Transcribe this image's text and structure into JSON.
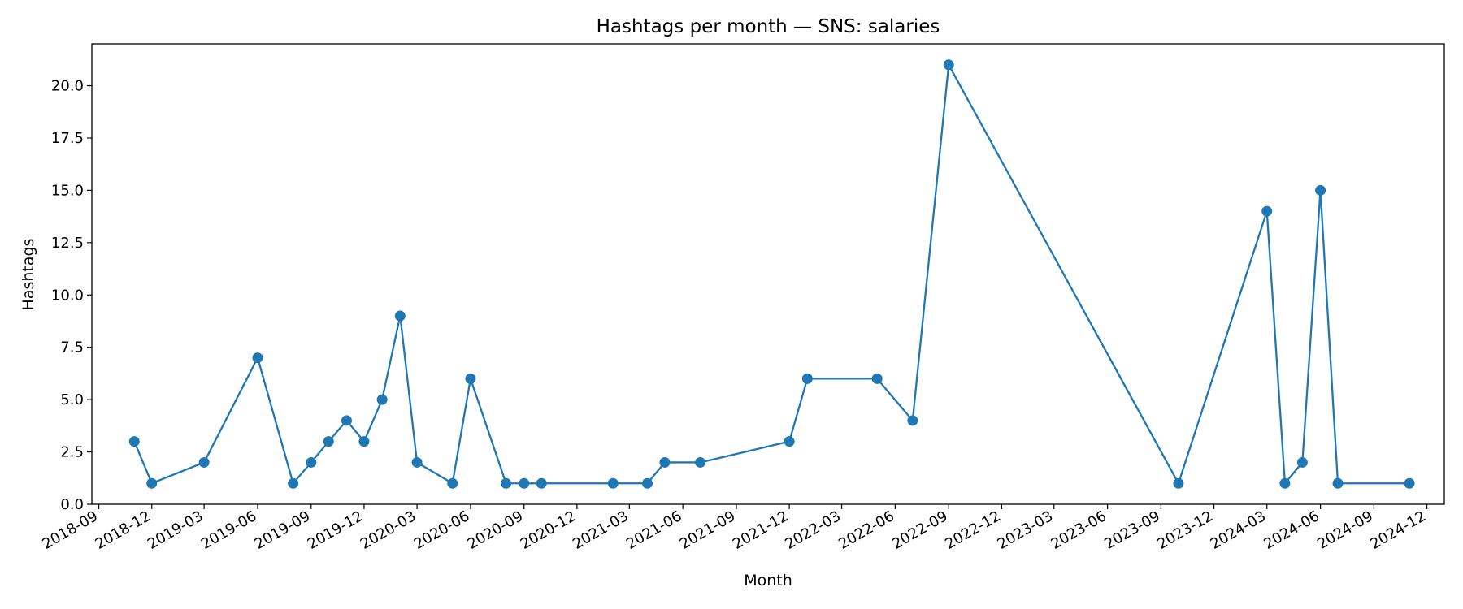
{
  "chart_data": {
    "type": "line",
    "title": "Hashtags per month — SNS: salaries",
    "xlabel": "Month",
    "ylabel": "Hashtags",
    "x_axis": "date",
    "xlim": [
      "2018-08-20",
      "2024-12-31"
    ],
    "ylim": [
      0,
      22
    ],
    "grid": false,
    "y_ticks": [
      "0.0",
      "2.5",
      "5.0",
      "7.5",
      "10.0",
      "12.5",
      "15.0",
      "17.5",
      "20.0"
    ],
    "x_ticks": [
      "2018-09",
      "2018-12",
      "2019-03",
      "2019-06",
      "2019-09",
      "2019-12",
      "2020-03",
      "2020-06",
      "2020-09",
      "2020-12",
      "2021-03",
      "2021-06",
      "2021-09",
      "2021-12",
      "2022-03",
      "2022-06",
      "2022-09",
      "2022-12",
      "2023-03",
      "2023-06",
      "2023-09",
      "2023-12",
      "2024-03",
      "2024-06",
      "2024-09",
      "2024-12"
    ],
    "series": [
      {
        "color": "#1f77b4",
        "x": [
          "2018-11",
          "2018-12",
          "2019-03",
          "2019-06",
          "2019-08",
          "2019-09",
          "2019-10",
          "2019-11",
          "2019-12",
          "2020-01",
          "2020-02",
          "2020-03",
          "2020-05",
          "2020-06",
          "2020-08",
          "2020-09",
          "2020-10",
          "2021-02",
          "2021-04",
          "2021-05",
          "2021-07",
          "2021-12",
          "2022-01",
          "2022-05",
          "2022-07",
          "2022-09",
          "2023-10",
          "2024-03",
          "2024-04",
          "2024-05",
          "2024-06",
          "2024-07",
          "2024-11"
        ],
        "values": [
          3,
          1,
          2,
          7,
          1,
          2,
          3,
          4,
          3,
          5,
          9,
          2,
          1,
          6,
          1,
          1,
          1,
          1,
          1,
          2,
          2,
          3,
          6,
          6,
          4,
          21,
          1,
          14,
          1,
          2,
          15,
          1,
          1
        ]
      }
    ]
  }
}
